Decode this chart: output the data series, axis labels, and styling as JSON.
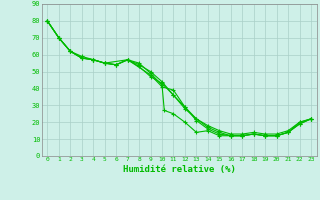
{
  "xlabel": "Humidité relative (%)",
  "background_color": "#cef0e8",
  "grid_color": "#aacfc8",
  "line_color": "#00bb00",
  "xlim": [
    -0.5,
    23.5
  ],
  "ylim": [
    0,
    90
  ],
  "yticks": [
    0,
    10,
    20,
    30,
    40,
    50,
    60,
    70,
    80,
    90
  ],
  "xticks": [
    0,
    1,
    2,
    3,
    4,
    5,
    6,
    7,
    8,
    9,
    10,
    11,
    12,
    13,
    14,
    15,
    16,
    17,
    18,
    19,
    20,
    21,
    22,
    23
  ],
  "series1": [
    [
      0,
      80
    ],
    [
      1,
      70
    ],
    [
      2,
      62
    ],
    [
      3,
      58
    ],
    [
      4,
      57
    ],
    [
      5,
      55
    ],
    [
      6,
      54
    ],
    [
      7,
      57
    ],
    [
      8,
      55
    ],
    [
      9,
      49
    ],
    [
      10,
      42
    ],
    [
      10.2,
      27
    ],
    [
      11,
      25
    ],
    [
      12,
      20
    ],
    [
      13,
      14
    ],
    [
      14,
      15
    ],
    [
      15,
      12
    ],
    [
      16,
      12
    ],
    [
      17,
      12
    ],
    [
      18,
      13
    ],
    [
      19,
      12
    ],
    [
      20,
      12
    ],
    [
      21,
      14
    ],
    [
      22,
      19
    ],
    [
      23,
      22
    ]
  ],
  "series2": [
    [
      0,
      80
    ],
    [
      1,
      70
    ],
    [
      2,
      62
    ],
    [
      3,
      58
    ],
    [
      4,
      57
    ],
    [
      5,
      55
    ],
    [
      6,
      54
    ],
    [
      7,
      57
    ],
    [
      8,
      53
    ],
    [
      9,
      47
    ],
    [
      10,
      43
    ],
    [
      11,
      36
    ],
    [
      12,
      29
    ],
    [
      13,
      22
    ],
    [
      14,
      18
    ],
    [
      15,
      15
    ],
    [
      16,
      13
    ],
    [
      17,
      13
    ],
    [
      18,
      14
    ],
    [
      19,
      13
    ],
    [
      20,
      13
    ],
    [
      21,
      15
    ],
    [
      22,
      20
    ],
    [
      23,
      22
    ]
  ],
  "series3": [
    [
      0,
      80
    ],
    [
      1,
      70
    ],
    [
      2,
      62
    ],
    [
      3,
      59
    ],
    [
      4,
      57
    ],
    [
      5,
      55
    ],
    [
      6,
      54
    ],
    [
      7,
      57
    ],
    [
      9,
      48
    ],
    [
      10,
      41
    ],
    [
      11,
      39
    ],
    [
      12,
      29
    ],
    [
      13,
      21
    ],
    [
      14,
      16
    ],
    [
      15,
      13
    ],
    [
      16,
      12
    ],
    [
      17,
      12
    ],
    [
      18,
      13
    ],
    [
      19,
      12
    ],
    [
      20,
      12
    ],
    [
      21,
      14
    ],
    [
      22,
      20
    ],
    [
      23,
      22
    ]
  ],
  "series4": [
    [
      0,
      80
    ],
    [
      1,
      70
    ],
    [
      2,
      62
    ],
    [
      3,
      58
    ],
    [
      4,
      57
    ],
    [
      5,
      55
    ],
    [
      7,
      57
    ],
    [
      8,
      54
    ],
    [
      9,
      50
    ],
    [
      10,
      44
    ],
    [
      11,
      36
    ],
    [
      12,
      28
    ],
    [
      13,
      22
    ],
    [
      14,
      17
    ],
    [
      15,
      14
    ],
    [
      16,
      12
    ],
    [
      17,
      12
    ],
    [
      18,
      13
    ],
    [
      19,
      12
    ],
    [
      20,
      12
    ],
    [
      21,
      14
    ],
    [
      22,
      19
    ],
    [
      23,
      22
    ]
  ]
}
